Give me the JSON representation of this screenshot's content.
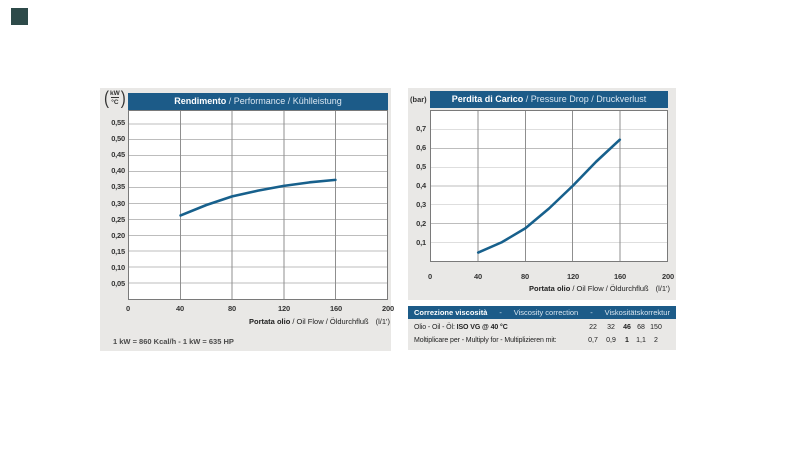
{
  "colors": {
    "accent_blue": "#1c5b88",
    "curve_blue": "#17608c",
    "panel_gray": "#e9e8e6",
    "corner_marker": "#2d4a49",
    "plot_border": "#7a7a7a"
  },
  "left_chart": {
    "title_bold": "Rendimento",
    "title_rest": " / Performance / Kühlleistung",
    "y_unit_top": "kW",
    "y_unit_bottom": "°C",
    "y_ticks": [
      "0,55",
      "0,50",
      "0,45",
      "0,40",
      "0,35",
      "0,30",
      "0,25",
      "0,20",
      "0,15",
      "0,10",
      "0,05"
    ],
    "x_ticks": [
      "0",
      "40",
      "80",
      "120",
      "160",
      "200"
    ],
    "x_label_bold": "Portata olio",
    "x_label_rest": " / Oil Flow / Öldurchfluß",
    "x_label_unit": "(l/1')",
    "footnote": "1 kW = 860 Kcal/h - 1 kW = 635 HP"
  },
  "right_chart": {
    "title_bold": "Perdita di Carico",
    "title_rest": " / Pressure Drop / Druckverlust",
    "y_unit": "(bar)",
    "y_ticks": [
      "0,7",
      "0,6",
      "0,5",
      "0,4",
      "0,3",
      "0,2",
      "0,1"
    ],
    "x_ticks": [
      "0",
      "40",
      "80",
      "120",
      "160",
      "200"
    ],
    "x_label_bold": "Portata olio",
    "x_label_rest": " / Oil Flow / Öldurchfluß",
    "x_label_unit": "(l/1')"
  },
  "viscosity_table": {
    "header_bold": "Correzione viscosità",
    "header_sep": "-",
    "header_mid": "Viscosity correction",
    "header_right": "Viskositätskorrektur",
    "row1_label": "Olio - Oil - Öl: ",
    "row1_label_bold": "ISO VG @ 40 °C",
    "row1_values": [
      "22",
      "32",
      "46",
      "68",
      "150"
    ],
    "row2_label": "Moltiplicare per - Multiply for - Multiplizieren mit:",
    "row2_values": [
      "0,7",
      "0,9",
      "1",
      "1,1",
      "2"
    ]
  },
  "chart_data": [
    {
      "type": "line",
      "title": "Rendimento / Performance / Kühlleistung",
      "xlabel": "Portata olio / Oil Flow / Öldurchfluß (l/1')",
      "ylabel": "kW/°C",
      "x": [
        40,
        60,
        80,
        100,
        120,
        140,
        160
      ],
      "y": [
        0.262,
        0.295,
        0.322,
        0.34,
        0.355,
        0.366,
        0.374
      ],
      "xlim": [
        0,
        200
      ],
      "ylim": [
        0,
        0.59
      ],
      "x_tick_step": 40,
      "y_tick_step": 0.05,
      "grid": true,
      "legend": "none",
      "color": "#17608c"
    },
    {
      "type": "line",
      "title": "Perdita di Carico / Pressure Drop / Druckverlust",
      "xlabel": "Portata olio / Oil Flow / Öldurchfluß (l/1')",
      "ylabel": "bar",
      "x": [
        40,
        60,
        80,
        100,
        120,
        140,
        160
      ],
      "y": [
        0.045,
        0.1,
        0.175,
        0.28,
        0.4,
        0.53,
        0.647
      ],
      "xlim": [
        0,
        200
      ],
      "ylim": [
        0,
        0.8
      ],
      "x_tick_step": 40,
      "y_tick_step": 0.1,
      "grid": true,
      "legend": "none",
      "color": "#17608c"
    }
  ]
}
